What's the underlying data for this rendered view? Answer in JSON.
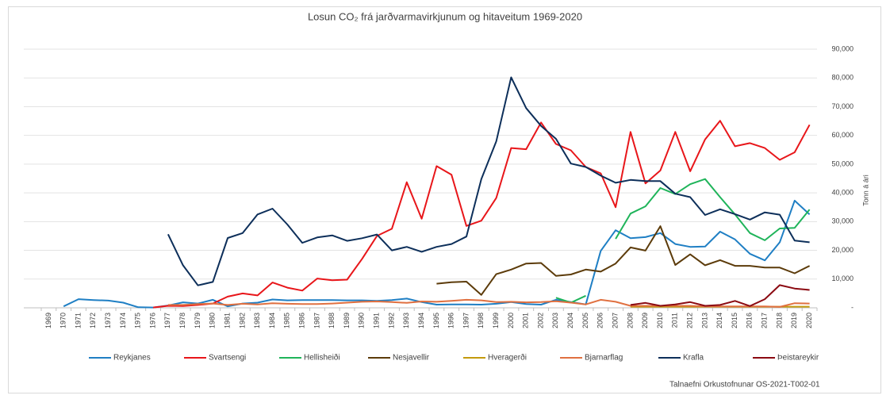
{
  "chart_data": {
    "type": "line",
    "title": "Losun CO₂ frá jarðvarmavirkjunum og hitaveitum 1969-2020",
    "y_label": "Tonn á ári",
    "source": "Talnaefni Orkustofnunar OS-2021-T002-01",
    "grid": true,
    "legend": "bottom",
    "categories": [
      "1969",
      "1970",
      "1971",
      "1972",
      "1973",
      "1974",
      "1975",
      "1976",
      "1977",
      "1978",
      "1979",
      "1980",
      "1981",
      "1982",
      "1983",
      "1984",
      "1985",
      "1986",
      "1987",
      "1988",
      "1989",
      "1990",
      "1991",
      "1992",
      "1993",
      "1994",
      "1995",
      "1996",
      "1997",
      "1998",
      "1999",
      "2000",
      "2001",
      "2002",
      "2003",
      "2004",
      "2005",
      "2006",
      "2007",
      "2008",
      "2009",
      "2010",
      "2011",
      "2012",
      "2013",
      "2014",
      "2015",
      "2016",
      "2017",
      "2018",
      "2019",
      "2020"
    ],
    "ylim": [
      0,
      90000
    ],
    "yticks": [
      {
        "value": 0,
        "label": "-"
      },
      {
        "value": 10000,
        "label": "10,000"
      },
      {
        "value": 20000,
        "label": "20,000"
      },
      {
        "value": 30000,
        "label": "30,000"
      },
      {
        "value": 40000,
        "label": "40,000"
      },
      {
        "value": 50000,
        "label": "50,000"
      },
      {
        "value": 60000,
        "label": "60,000"
      },
      {
        "value": 70000,
        "label": "70,000"
      },
      {
        "value": 80000,
        "label": "80,000"
      },
      {
        "value": 90000,
        "label": "90,000"
      }
    ],
    "series": [
      {
        "name": "Reykjanes",
        "color": "#1f7fc4",
        "values": [
          null,
          500,
          3000,
          2700,
          2500,
          1800,
          200,
          100,
          800,
          1900,
          1500,
          2800,
          500,
          1500,
          1800,
          2900,
          2600,
          2700,
          2700,
          2700,
          2600,
          2600,
          2400,
          2700,
          3200,
          2000,
          1100,
          1200,
          1200,
          1100,
          1400,
          2000,
          1300,
          1100,
          2800,
          2000,
          1200,
          19800,
          27000,
          24200,
          24600,
          26000,
          22200,
          21200,
          21300,
          26500,
          23800,
          18800,
          16500,
          22800,
          37300,
          32500
        ]
      },
      {
        "name": "Svartsengi",
        "color": "#e8161a",
        "values": [
          null,
          null,
          null,
          null,
          null,
          null,
          null,
          100,
          700,
          600,
          1000,
          1500,
          3900,
          5000,
          4300,
          8800,
          7000,
          6000,
          10200,
          9600,
          9800,
          17000,
          25000,
          27500,
          43700,
          31000,
          49300,
          46300,
          28500,
          30300,
          38200,
          55600,
          55200,
          64500,
          57000,
          54800,
          49000,
          46800,
          35000,
          61200,
          43300,
          47800,
          61200,
          47500,
          58600,
          65100,
          56200,
          57300,
          55600,
          51500,
          54100,
          63700
        ]
      },
      {
        "name": "Hellisheiði",
        "color": "#1fb45a",
        "values": [
          null,
          null,
          null,
          null,
          null,
          null,
          null,
          null,
          null,
          null,
          null,
          null,
          null,
          null,
          null,
          null,
          null,
          null,
          null,
          null,
          null,
          null,
          null,
          null,
          null,
          null,
          null,
          null,
          null,
          null,
          null,
          null,
          null,
          null,
          3500,
          1800,
          4200,
          null,
          24000,
          32800,
          35300,
          41700,
          39600,
          43000,
          44800,
          38500,
          32500,
          26000,
          23500,
          27600,
          27800,
          34200
        ]
      },
      {
        "name": "Nesjavellir",
        "color": "#5c3b0a",
        "values": [
          null,
          null,
          null,
          null,
          null,
          null,
          null,
          null,
          null,
          null,
          null,
          null,
          null,
          null,
          null,
          null,
          null,
          null,
          null,
          null,
          null,
          null,
          null,
          null,
          null,
          null,
          8400,
          8900,
          9100,
          4500,
          11700,
          13300,
          15400,
          15600,
          11100,
          11600,
          13300,
          12600,
          15400,
          21000,
          19900,
          28400,
          14900,
          18600,
          14800,
          16600,
          14600,
          14600,
          14000,
          14000,
          12000,
          14600
        ]
      },
      {
        "name": "Hveragerði",
        "color": "#c49a0c",
        "values": [
          null,
          null,
          null,
          null,
          null,
          null,
          null,
          null,
          null,
          null,
          null,
          null,
          null,
          null,
          null,
          null,
          null,
          null,
          null,
          null,
          null,
          null,
          null,
          null,
          null,
          null,
          null,
          null,
          null,
          null,
          null,
          null,
          null,
          null,
          null,
          null,
          null,
          null,
          null,
          400,
          400,
          400,
          400,
          400,
          400,
          400,
          400,
          400,
          400,
          400,
          400,
          400
        ]
      },
      {
        "name": "Bjarnarflag",
        "color": "#e07040",
        "values": [
          null,
          null,
          null,
          null,
          null,
          null,
          null,
          null,
          1000,
          1000,
          1300,
          1500,
          1000,
          1400,
          1200,
          1600,
          1400,
          1300,
          1300,
          1500,
          1800,
          2100,
          2200,
          2000,
          1700,
          2200,
          2100,
          2400,
          2800,
          2600,
          2000,
          2100,
          1900,
          2000,
          2300,
          1800,
          1200,
          2800,
          2100,
          700,
          700,
          700,
          700,
          700,
          500,
          500,
          500,
          500,
          500,
          300,
          1600,
          1500
        ]
      },
      {
        "name": "Krafla",
        "color": "#0d2f5a",
        "values": [
          null,
          null,
          null,
          null,
          null,
          null,
          null,
          null,
          25600,
          14800,
          7800,
          9000,
          24300,
          26000,
          32500,
          34500,
          29000,
          22600,
          24500,
          25200,
          23300,
          24200,
          25500,
          20000,
          21200,
          19500,
          21200,
          22200,
          24800,
          44800,
          57900,
          80200,
          69500,
          63300,
          58800,
          50200,
          49000,
          46000,
          43500,
          44500,
          44100,
          44100,
          39700,
          38500,
          32300,
          34300,
          32600,
          30700,
          33200,
          32400,
          23400,
          22800
        ]
      },
      {
        "name": "Þeistareykir",
        "color": "#8b0a12",
        "values": [
          null,
          null,
          null,
          null,
          null,
          null,
          null,
          null,
          null,
          null,
          null,
          null,
          null,
          null,
          null,
          null,
          null,
          null,
          null,
          null,
          null,
          null,
          null,
          null,
          null,
          null,
          null,
          null,
          null,
          null,
          null,
          null,
          null,
          null,
          null,
          null,
          null,
          null,
          null,
          1000,
          1700,
          700,
          1200,
          2000,
          700,
          1000,
          2400,
          600,
          3000,
          7900,
          6700,
          6200
        ]
      }
    ]
  }
}
